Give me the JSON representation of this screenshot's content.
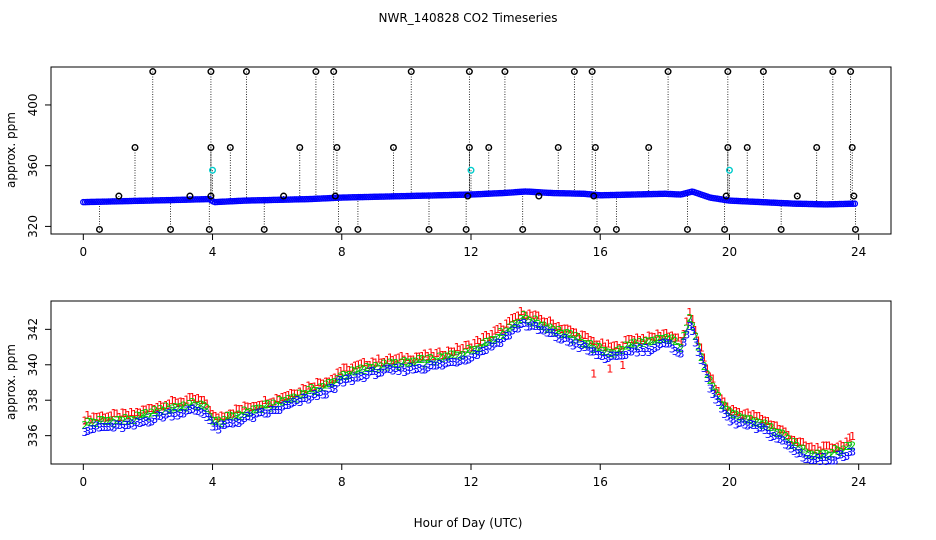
{
  "title": "NWR_140828  CO2 Timeseries",
  "xlabel": "Hour of Day (UTC)",
  "chart_data": [
    {
      "type": "scatter",
      "panel": "top",
      "ylabel": "approx. ppm",
      "x_ticks": [
        0,
        4,
        8,
        12,
        16,
        20,
        24
      ],
      "y_ticks": [
        320,
        360,
        400
      ],
      "xlim": [
        -1,
        25
      ],
      "ylim": [
        315,
        425
      ],
      "baseline": [
        [
          0,
          336
        ],
        [
          1,
          336.5
        ],
        [
          2,
          337
        ],
        [
          3,
          337.5
        ],
        [
          3.9,
          338
        ],
        [
          4.05,
          336
        ],
        [
          5,
          337
        ],
        [
          6,
          337.5
        ],
        [
          7,
          338
        ],
        [
          8,
          339
        ],
        [
          9,
          339.5
        ],
        [
          10,
          340
        ],
        [
          11,
          340.5
        ],
        [
          12,
          341
        ],
        [
          13,
          342
        ],
        [
          13.7,
          343
        ],
        [
          14.5,
          342
        ],
        [
          15.5,
          341.5
        ],
        [
          16,
          340.5
        ],
        [
          17,
          341
        ],
        [
          18,
          341.5
        ],
        [
          18.5,
          341
        ],
        [
          18.85,
          343
        ],
        [
          19.4,
          339
        ],
        [
          20,
          337
        ],
        [
          21,
          336
        ],
        [
          22,
          335
        ],
        [
          23,
          334.5
        ],
        [
          23.9,
          335
        ]
      ],
      "outliers_black": [
        [
          0.5,
          318
        ],
        [
          1.1,
          340
        ],
        [
          1.6,
          372
        ],
        [
          2.15,
          422
        ],
        [
          2.7,
          318
        ],
        [
          3.3,
          340
        ],
        [
          3.9,
          318
        ],
        [
          3.95,
          340
        ],
        [
          3.95,
          372
        ],
        [
          3.95,
          422
        ],
        [
          4.55,
          372
        ],
        [
          5.05,
          422
        ],
        [
          5.6,
          318
        ],
        [
          6.2,
          340
        ],
        [
          6.7,
          372
        ],
        [
          7.2,
          422
        ],
        [
          7.75,
          422
        ],
        [
          7.8,
          340
        ],
        [
          7.85,
          372
        ],
        [
          7.9,
          318
        ],
        [
          8.5,
          318
        ],
        [
          9.6,
          372
        ],
        [
          10.15,
          422
        ],
        [
          10.7,
          318
        ],
        [
          11.85,
          318
        ],
        [
          11.9,
          340
        ],
        [
          11.95,
          372
        ],
        [
          11.95,
          422
        ],
        [
          12.55,
          372
        ],
        [
          13.05,
          422
        ],
        [
          13.6,
          318
        ],
        [
          14.1,
          340
        ],
        [
          14.7,
          372
        ],
        [
          15.2,
          422
        ],
        [
          15.75,
          422
        ],
        [
          15.8,
          340
        ],
        [
          15.85,
          372
        ],
        [
          15.9,
          318
        ],
        [
          16.5,
          318
        ],
        [
          17.5,
          372
        ],
        [
          18.1,
          422
        ],
        [
          18.7,
          318
        ],
        [
          19.85,
          318
        ],
        [
          19.9,
          340
        ],
        [
          19.95,
          372
        ],
        [
          19.95,
          422
        ],
        [
          20.55,
          372
        ],
        [
          21.05,
          422
        ],
        [
          21.6,
          318
        ],
        [
          22.1,
          340
        ],
        [
          22.7,
          372
        ],
        [
          23.2,
          422
        ],
        [
          23.75,
          422
        ],
        [
          23.8,
          372
        ],
        [
          23.85,
          340
        ],
        [
          23.9,
          318
        ]
      ],
      "outliers_cyan": [
        [
          4.0,
          357
        ],
        [
          12.0,
          357
        ],
        [
          20.0,
          357
        ]
      ]
    },
    {
      "type": "scatter",
      "panel": "bottom",
      "ylabel": "approx. ppm",
      "x_ticks": [
        0,
        4,
        8,
        12,
        16,
        20,
        24
      ],
      "y_ticks": [
        336,
        338,
        340,
        342
      ],
      "xlim": [
        -1,
        25
      ],
      "ylim": [
        334.4,
        343.6
      ],
      "series": [
        {
          "name": "1",
          "color": "#ff0000",
          "offset": 0.3
        },
        {
          "name": "2",
          "color": "#00cc00",
          "offset": 0.0
        },
        {
          "name": "3",
          "color": "#0000ff",
          "offset": -0.35
        }
      ],
      "baseline": [
        [
          0,
          336.7
        ],
        [
          0.5,
          336.8
        ],
        [
          1.5,
          336.9
        ],
        [
          2.5,
          337.5
        ],
        [
          3.5,
          337.8
        ],
        [
          3.85,
          337.5
        ],
        [
          4.05,
          336.7
        ],
        [
          5,
          337.3
        ],
        [
          6,
          337.8
        ],
        [
          7,
          338.5
        ],
        [
          7.8,
          339
        ],
        [
          7.85,
          339.3
        ],
        [
          9,
          339.9
        ],
        [
          10,
          340.1
        ],
        [
          11,
          340.3
        ],
        [
          12,
          340.8
        ],
        [
          13,
          341.8
        ],
        [
          13.6,
          342.7
        ],
        [
          14.3,
          342.2
        ],
        [
          15.5,
          341.3
        ],
        [
          15.8,
          341
        ],
        [
          16.1,
          340.8
        ],
        [
          16.5,
          340.7
        ],
        [
          17,
          341.2
        ],
        [
          17.5,
          341.2
        ],
        [
          18,
          341.5
        ],
        [
          18.3,
          341.3
        ],
        [
          18.5,
          341
        ],
        [
          18.8,
          342.7
        ],
        [
          19.3,
          339.5
        ],
        [
          19.7,
          338
        ],
        [
          20,
          337.2
        ],
        [
          21,
          336.7
        ],
        [
          21.5,
          336.2
        ],
        [
          22,
          335.5
        ],
        [
          22.5,
          335
        ],
        [
          23,
          335
        ],
        [
          23.5,
          335.2
        ],
        [
          23.85,
          335.6
        ]
      ],
      "dips_series1": [
        [
          15.8,
          339.5
        ],
        [
          16.3,
          339.8
        ],
        [
          16.7,
          340
        ]
      ]
    }
  ]
}
